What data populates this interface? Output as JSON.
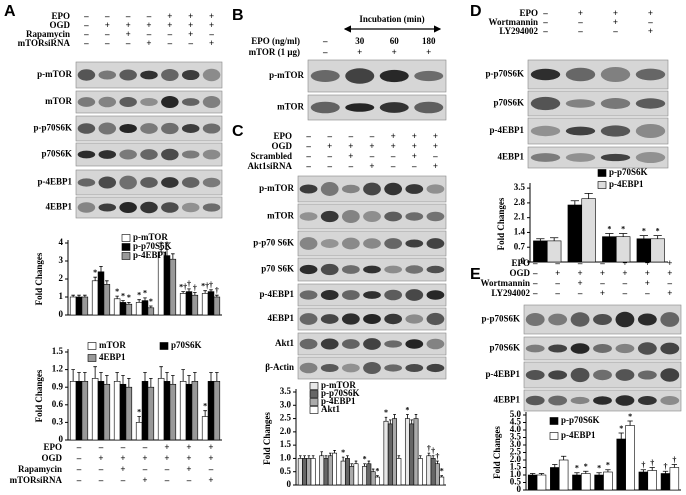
{
  "panels": {
    "A": {
      "letter": "A",
      "conditions": [
        {
          "label": "EPO",
          "signs": [
            "–",
            "–",
            "–",
            "–",
            "+",
            "+",
            "+"
          ]
        },
        {
          "label": "OGD",
          "signs": [
            "–",
            "+",
            "+",
            "+",
            "+",
            "+",
            "+"
          ]
        },
        {
          "label": "Rapamycin",
          "signs": [
            "–",
            "–",
            "+",
            "–",
            "–",
            "+",
            "–"
          ]
        },
        {
          "label": "mTORsiRNA",
          "signs": [
            "–",
            "–",
            "–",
            "+",
            "–",
            "–",
            "+"
          ]
        }
      ],
      "blots": [
        "p-mTOR",
        "mTOR",
        "p-p70S6K",
        "p70S6K",
        "p-4EBP1",
        "4EBP1"
      ],
      "chart_conditions": [
        {
          "label": "EPO",
          "signs": [
            "–",
            "–",
            "–",
            "–",
            "+",
            "+",
            "+"
          ]
        },
        {
          "label": "OGD",
          "signs": [
            "–",
            "+",
            "+",
            "+",
            "+",
            "+",
            "+"
          ]
        },
        {
          "label": "Rapamycin",
          "signs": [
            "–",
            "–",
            "+",
            "–",
            "–",
            "+",
            "–"
          ]
        },
        {
          "label": "mTORsiRNA",
          "signs": [
            "–",
            "–",
            "–",
            "+",
            "–",
            "–",
            "+"
          ]
        }
      ]
    },
    "B": {
      "letter": "B",
      "header": "Incubation (min)",
      "conditions": [
        {
          "label": "EPO (ng/ml)",
          "signs": [
            "–",
            "30",
            "60",
            "180"
          ]
        },
        {
          "label": "mTOR (1 μg)",
          "signs": [
            "–",
            "+",
            "+",
            "+"
          ]
        }
      ],
      "blots": [
        "p-mTOR",
        "mTOR"
      ]
    },
    "C": {
      "letter": "C",
      "conditions": [
        {
          "label": "EPO",
          "signs": [
            "–",
            "–",
            "–",
            "–",
            "+",
            "+",
            "+"
          ]
        },
        {
          "label": "OGD",
          "signs": [
            "–",
            "+",
            "+",
            "+",
            "+",
            "+",
            "+"
          ]
        },
        {
          "label": "Scrambled",
          "signs": [
            "–",
            "–",
            "+",
            "–",
            "–",
            "+",
            "–"
          ]
        },
        {
          "label": "Akt1siRNA",
          "signs": [
            "–",
            "–",
            "–",
            "+",
            "–",
            "–",
            "+"
          ]
        }
      ],
      "blots": [
        "p-mTOR",
        "mTOR",
        "p-p70 S6K",
        "p70 S6K",
        "p-4EBP1",
        "4EBP1",
        "Akt1",
        "β-Actin"
      ]
    },
    "D": {
      "letter": "D",
      "conditions": [
        {
          "label": "EPO",
          "signs": [
            "–",
            "+",
            "+",
            "+"
          ]
        },
        {
          "label": "Wortmannin",
          "signs": [
            "–",
            "–",
            "+",
            "–"
          ]
        },
        {
          "label": "LY294002",
          "signs": [
            "–",
            "–",
            "–",
            "+"
          ]
        }
      ],
      "blots": [
        "p-p70S6K",
        "p70S6K",
        "p-4EBP1",
        "4EBP1"
      ]
    },
    "E": {
      "letter": "E",
      "conditions": [
        {
          "label": "EPO",
          "signs": [
            "–",
            "–",
            "–",
            "–",
            "+",
            "+",
            "+"
          ]
        },
        {
          "label": "OGD",
          "signs": [
            "–",
            "+",
            "+",
            "+",
            "+",
            "+",
            "+"
          ]
        },
        {
          "label": "Wortmannin",
          "signs": [
            "–",
            "–",
            "+",
            "–",
            "–",
            "+",
            "–"
          ]
        },
        {
          "label": "LY294002",
          "signs": [
            "–",
            "–",
            "–",
            "+",
            "–",
            "–",
            "+"
          ]
        }
      ],
      "blots": [
        "p-p70S6K",
        "p70S6K",
        "p-4EBP1",
        "4EBP1"
      ]
    }
  },
  "chart_data": [
    {
      "type": "bar",
      "y_label": "Fold Changes",
      "ylim": [
        0,
        4
      ],
      "yticks": [
        0,
        1,
        2,
        3,
        4
      ],
      "series": [
        {
          "name": "p-mTOR",
          "color": "#ffffff",
          "values": [
            1,
            1.9,
            0.9,
            0.7,
            3.5,
            1.2,
            1.2
          ],
          "errors": [
            0.1,
            0.2,
            0.15,
            0.15,
            0.15,
            0.1,
            0.15
          ],
          "significance": [
            null,
            "*",
            "*",
            "*",
            "*",
            "*†",
            "*†"
          ]
        },
        {
          "name": "p-p70S6K",
          "color": "#000000",
          "values": [
            1,
            2.4,
            0.7,
            0.8,
            3.3,
            1.3,
            1.3
          ],
          "errors": [
            0.1,
            0.3,
            0.1,
            0.15,
            0.35,
            0.15,
            0.1
          ],
          "significance": [
            null,
            null,
            "*",
            "*",
            "*",
            "†",
            "†"
          ]
        },
        {
          "name": "p-4EBP1",
          "color": "#999999",
          "values": [
            1,
            1.7,
            0.6,
            0.4,
            3.1,
            1.1,
            1.0
          ],
          "errors": [
            0.1,
            0.2,
            0.1,
            0.1,
            0.3,
            0.15,
            0.1
          ],
          "significance": [
            null,
            null,
            "*",
            "*",
            null,
            "†",
            "†"
          ]
        }
      ]
    },
    {
      "type": "bar",
      "y_label": "Fold Changes",
      "ylim": [
        0,
        1.5
      ],
      "yticks": [
        0,
        0.3,
        0.6,
        0.9,
        1.2,
        1.5
      ],
      "series": [
        {
          "name": "mTOR",
          "color": "#ffffff",
          "values": [
            1,
            1.05,
            1.0,
            0.3,
            1.05,
            1.0,
            0.4
          ],
          "errors": [
            0.2,
            0.2,
            0.15,
            0.1,
            0.2,
            0.2,
            0.1
          ],
          "significance": [
            null,
            null,
            null,
            "*",
            null,
            null,
            "*"
          ]
        },
        {
          "name": "p70S6K",
          "color": "#000000",
          "values": [
            1,
            1.0,
            0.95,
            1.0,
            1.0,
            0.95,
            1.0
          ],
          "errors": [
            0.15,
            0.15,
            0.15,
            0.15,
            0.15,
            0.15,
            0.15
          ],
          "significance": [
            null,
            null,
            null,
            null,
            null,
            null,
            null
          ]
        },
        {
          "name": "4EBP1",
          "color": "#999999",
          "values": [
            1,
            0.95,
            0.9,
            0.9,
            0.95,
            1.0,
            1.0
          ],
          "errors": [
            0.15,
            0.15,
            0.15,
            0.15,
            0.15,
            0.15,
            0.15
          ],
          "significance": [
            null,
            null,
            null,
            null,
            null,
            null,
            null
          ]
        }
      ]
    },
    {
      "type": "bar",
      "y_label": "Fold Changes",
      "ylim": [
        0,
        3.5
      ],
      "yticks": [
        0,
        0.5,
        {
          "value": 1,
          "label": "1.0"
        },
        1.5,
        {
          "value": 2,
          "label": "2.0"
        },
        2.5,
        {
          "value": 3,
          "label": "3.0"
        },
        3.5
      ],
      "series": [
        {
          "name": "p-mTOR",
          "color": "#e8e8e8",
          "values": [
            1,
            1.1,
            0.9,
            0.7,
            2.4,
            2.5,
            1.1
          ],
          "errors": [
            0.1,
            0.15,
            0.15,
            0.1,
            0.15,
            0.15,
            0.1
          ],
          "significance": [
            null,
            null,
            "*",
            "*",
            "*",
            "*",
            "†"
          ]
        },
        {
          "name": "p-p70S6K",
          "color": "#666666",
          "values": [
            1,
            1.0,
            1.0,
            0.8,
            2.3,
            2.3,
            1.0
          ],
          "errors": [
            0.1,
            0.1,
            0.1,
            0.1,
            0.15,
            0.15,
            0.1
          ],
          "significance": [
            null,
            null,
            null,
            null,
            null,
            null,
            "†"
          ]
        },
        {
          "name": "p-4EBP1",
          "color": "#aaaaaa",
          "values": [
            1,
            1.1,
            0.7,
            0.5,
            2.5,
            2.5,
            0.8
          ],
          "errors": [
            0.1,
            0.1,
            0.1,
            0.1,
            0.15,
            0.15,
            0.1
          ],
          "significance": [
            null,
            null,
            null,
            null,
            null,
            null,
            "†"
          ]
        },
        {
          "name": "Akt1",
          "color": "#ffffff",
          "values": [
            1,
            1.2,
            0.8,
            0.3,
            1.0,
            1.0,
            0.3
          ],
          "errors": [
            0.1,
            0.1,
            0.1,
            0.05,
            0.1,
            0.1,
            0.05
          ],
          "significance": [
            null,
            null,
            null,
            "*",
            null,
            null,
            "*"
          ]
        }
      ]
    },
    {
      "type": "bar",
      "y_label": "Fold Changes",
      "ylim": [
        0,
        3.6
      ],
      "yticks": [
        0,
        0.7,
        1.4,
        2.1,
        2.8,
        3.5
      ],
      "series": [
        {
          "name": "p-p70S6K",
          "color": "#000000",
          "values": [
            1,
            2.7,
            1.2,
            1.1
          ],
          "errors": [
            0.1,
            0.2,
            0.15,
            0.15
          ],
          "significance": [
            null,
            null,
            "*",
            "*"
          ]
        },
        {
          "name": "p-4EBP1",
          "color": "#dddddd",
          "values": [
            1,
            3.0,
            1.2,
            1.1
          ],
          "errors": [
            0.15,
            0.25,
            0.15,
            0.15
          ],
          "significance": [
            null,
            null,
            "*",
            "*"
          ]
        }
      ]
    },
    {
      "type": "bar",
      "y_label": "Fold Changes",
      "ylim": [
        0,
        5
      ],
      "yticks": [
        0,
        0.5,
        {
          "value": 1,
          "label": "1.0"
        },
        1.5,
        {
          "value": 2,
          "label": "2.0"
        },
        2.5,
        {
          "value": 3,
          "label": "3.0"
        },
        3.5,
        {
          "value": 4,
          "label": "4.0"
        },
        4.5,
        {
          "value": 5,
          "label": "5.0"
        }
      ],
      "series": [
        {
          "name": "p-p70S6K",
          "color": "#000000",
          "values": [
            1,
            1.5,
            1.0,
            1.0,
            3.4,
            1.2,
            1.1
          ],
          "errors": [
            0.1,
            0.2,
            0.15,
            0.15,
            0.4,
            0.15,
            0.15
          ],
          "significance": [
            null,
            null,
            "*",
            "*",
            "*",
            "†",
            "†"
          ]
        },
        {
          "name": "p-4EBP1",
          "color": "#ffffff",
          "values": [
            1,
            2.0,
            1.1,
            1.2,
            4.3,
            1.3,
            1.5
          ],
          "errors": [
            0.1,
            0.25,
            0.15,
            0.15,
            0.3,
            0.2,
            0.2
          ],
          "significance": [
            null,
            null,
            "*",
            "*",
            "*",
            "†",
            "†"
          ]
        }
      ]
    }
  ]
}
